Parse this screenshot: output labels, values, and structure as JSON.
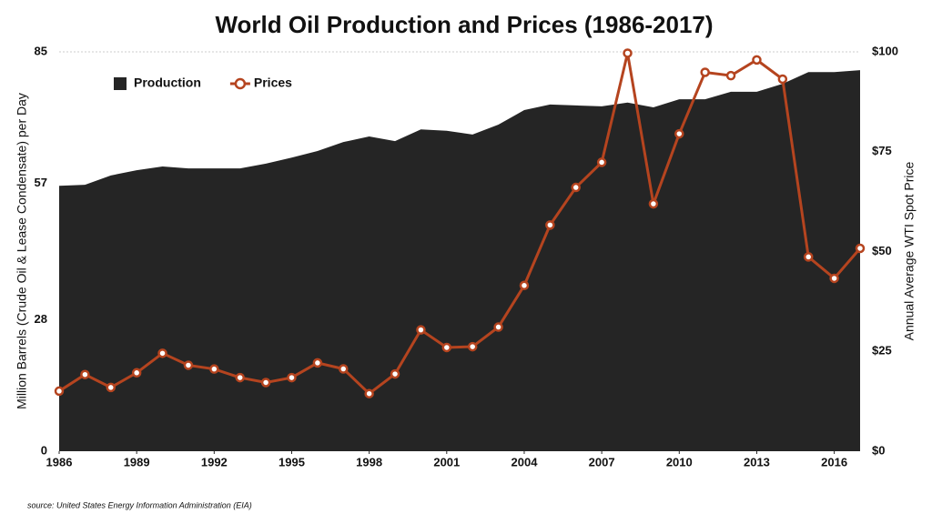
{
  "chart_data": {
    "type": "area",
    "title": "World Oil Production and Prices (1986-2017)",
    "y_label": "Million Barrels (Crude Oil & Lease Condensate) per Day",
    "y2_label": "Annual Average WTI Spot Price",
    "source": "source: United States Energy Information Administration (EIA)",
    "x": [
      1986,
      1987,
      1988,
      1989,
      1990,
      1991,
      1992,
      1993,
      1994,
      1995,
      1996,
      1997,
      1998,
      1999,
      2000,
      2001,
      2002,
      2003,
      2004,
      2005,
      2006,
      2007,
      2008,
      2009,
      2010,
      2011,
      2012,
      2013,
      2014,
      2015,
      2016,
      2017
    ],
    "xlim": [
      1986,
      2017
    ],
    "xticks": [
      1986,
      1989,
      1992,
      1995,
      1998,
      2001,
      2004,
      2007,
      2010,
      2013,
      2016
    ],
    "ylim": [
      0,
      85
    ],
    "yticks": [
      0,
      28,
      57,
      85
    ],
    "y2lim": [
      0,
      100
    ],
    "y2ticks": [
      {
        "value": 0,
        "label": "$0"
      },
      {
        "value": 25,
        "label": "$25"
      },
      {
        "value": 50,
        "label": "$50"
      },
      {
        "value": 75,
        "label": "$75"
      },
      {
        "value": 100,
        "label": "$100"
      }
    ],
    "legend": "top-left",
    "series": [
      {
        "name": "Production",
        "type": "area",
        "color": "#252525",
        "values": [
          56.5,
          56.7,
          58.7,
          59.8,
          60.6,
          60.2,
          60.2,
          60.2,
          61.2,
          62.5,
          63.9,
          65.8,
          67.0,
          66.0,
          68.5,
          68.2,
          67.4,
          69.5,
          72.6,
          73.8,
          73.6,
          73.4,
          74.2,
          73.2,
          74.9,
          74.9,
          76.5,
          76.5,
          78.2,
          80.7,
          80.7,
          81.1
        ]
      },
      {
        "name": "Prices",
        "type": "line",
        "axis": "y2",
        "color": "#b5441f",
        "values": [
          15.05,
          19.2,
          15.97,
          19.64,
          24.53,
          21.54,
          20.58,
          18.43,
          17.2,
          18.43,
          22.12,
          20.61,
          14.42,
          19.34,
          30.38,
          25.98,
          26.18,
          31.08,
          41.51,
          56.64,
          66.05,
          72.34,
          99.67,
          61.95,
          79.48,
          94.88,
          94.05,
          97.98,
          93.17,
          48.66,
          43.29,
          50.8
        ]
      }
    ]
  }
}
